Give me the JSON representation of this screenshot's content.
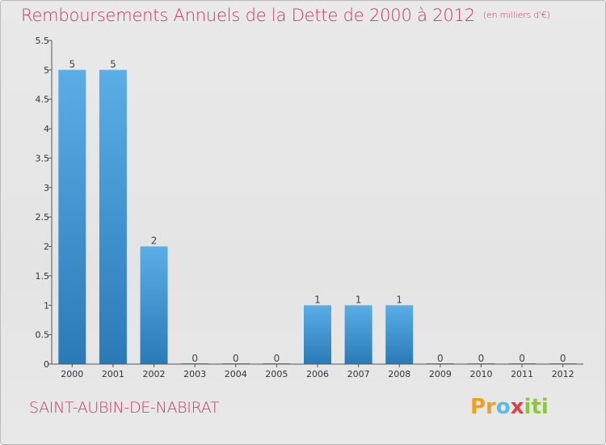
{
  "title": {
    "main": "Remboursements Annuels de la Dette de 2000 à 2012",
    "unit": "(en milliers d'€)"
  },
  "commune": "SAINT-AUBIN-DE-NABIRAT",
  "logo": {
    "text": "Proxiti",
    "parts": [
      "Pr",
      "o",
      "x",
      "iti"
    ]
  },
  "colors": {
    "title": "#c4386a",
    "bar_top": "#5aaee6",
    "bar_bottom": "#2a7ab8",
    "axis": "#555555"
  },
  "chart_data": {
    "type": "bar",
    "categories": [
      "2000",
      "2001",
      "2002",
      "2003",
      "2004",
      "2005",
      "2006",
      "2007",
      "2008",
      "2009",
      "2010",
      "2011",
      "2012"
    ],
    "values": [
      5,
      5,
      2,
      0,
      0,
      0,
      1,
      1,
      1,
      0,
      0,
      0,
      0
    ],
    "value_labels": [
      "5",
      "5",
      "2",
      "0",
      "0",
      "0",
      "1",
      "1",
      "1",
      "0",
      "0",
      "0",
      "0"
    ],
    "ylim": [
      0,
      5.5
    ],
    "yticks": [
      0,
      0.5,
      1,
      1.5,
      2,
      2.5,
      3,
      3.5,
      4,
      4.5,
      5,
      5.5
    ],
    "ytick_labels": [
      "0",
      "0.5",
      "1",
      "1.5",
      "2",
      "2.5",
      "3",
      "3.5",
      "4",
      "4.5",
      "5",
      "5.5"
    ],
    "title": "Remboursements Annuels de la Dette de 2000 à 2012",
    "xlabel": "",
    "ylabel": "",
    "grid": false,
    "legend": "none"
  }
}
